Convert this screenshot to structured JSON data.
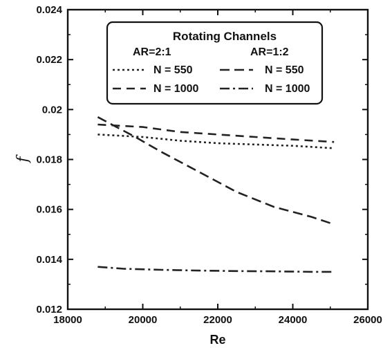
{
  "chart_data": {
    "type": "line",
    "title": "",
    "xlabel": "Re",
    "ylabel": "f",
    "xlim": [
      18000,
      26000
    ],
    "ylim": [
      0.012,
      0.024
    ],
    "xticks": [
      18000,
      20000,
      22000,
      24000,
      26000
    ],
    "xtick_labels": [
      "18000",
      "20000",
      "22000",
      "24000",
      "26000"
    ],
    "yticks": [
      0.012,
      0.014,
      0.016,
      0.018,
      0.02,
      0.022,
      0.024
    ],
    "ytick_labels": [
      "0.012",
      "0.014",
      "0.016",
      "0.018",
      "0.02",
      "0.022",
      "0.024"
    ],
    "grid": false,
    "legend": {
      "placement": "top-center",
      "title": "Rotating Channels",
      "group_labels": [
        "AR=2:1",
        "AR=1:2"
      ]
    },
    "series": [
      {
        "name": "N = 550",
        "group": "AR=2:1",
        "style": "dotted",
        "x": [
          18800,
          20000,
          21000,
          22000,
          23000,
          24000,
          25100
        ],
        "y": [
          0.019,
          0.0189,
          0.01875,
          0.01865,
          0.0186,
          0.01855,
          0.01845
        ]
      },
      {
        "name": "N = 550",
        "group": "AR=1:2",
        "style": "long-dash",
        "x": [
          18800,
          19300,
          19800,
          20500,
          21500,
          22500,
          23500,
          24500,
          25100
        ],
        "y": [
          0.0197,
          0.0193,
          0.0189,
          0.0183,
          0.0175,
          0.0167,
          0.0161,
          0.0157,
          0.0154
        ]
      },
      {
        "name": "N = 1000",
        "group": "AR=2:1",
        "style": "dash",
        "x": [
          18800,
          20000,
          21000,
          22000,
          23000,
          24000,
          25100
        ],
        "y": [
          0.0194,
          0.0193,
          0.0191,
          0.019,
          0.0189,
          0.0188,
          0.0187
        ]
      },
      {
        "name": "N = 1000",
        "group": "AR=1:2",
        "style": "dash-dot",
        "x": [
          18800,
          19500,
          20500,
          21500,
          22500,
          23500,
          24500,
          25100
        ],
        "y": [
          0.0137,
          0.01362,
          0.01358,
          0.01355,
          0.01353,
          0.01352,
          0.0135,
          0.0135
        ]
      }
    ]
  }
}
